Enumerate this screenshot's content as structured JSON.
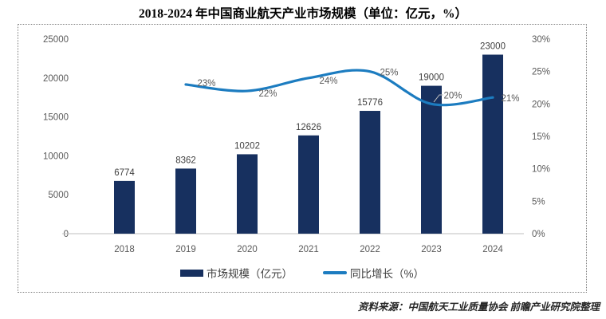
{
  "source": "资料来源：中国航天工业质量协会 前瞻产业研究院整理",
  "chart_data": {
    "type": "bar+line combo",
    "title": "2018-2024 年中国商业航天产业市场规模（单位：亿元，%）",
    "categories": [
      "2018",
      "2019",
      "2020",
      "2021",
      "2022",
      "2023",
      "2024"
    ],
    "series": [
      {
        "name": "市场规模（亿元）",
        "type": "bar",
        "axis": "left",
        "values": [
          6774,
          8362,
          10202,
          12626,
          15776,
          19000,
          23000
        ],
        "value_labels": [
          "6774",
          "8362",
          "10202",
          "12626",
          "15776",
          "19000",
          "23000"
        ]
      },
      {
        "name": "同比增长（%）",
        "type": "line",
        "axis": "right",
        "values": [
          null,
          23,
          22,
          24,
          25,
          20,
          21
        ],
        "point_labels": [
          "",
          "23%",
          "22%",
          "24%",
          "25%",
          "20%",
          "21%"
        ],
        "smoothed": true
      }
    ],
    "left_axis": {
      "min": 0,
      "max": 25000,
      "step": 5000,
      "ticks": [
        "25000",
        "20000",
        "15000",
        "10000",
        "5000",
        "0"
      ]
    },
    "right_axis": {
      "min": 0,
      "max": 30,
      "step": 5,
      "ticks": [
        "30%",
        "25%",
        "20%",
        "15%",
        "10%",
        "5%",
        "0%"
      ]
    },
    "legend": [
      "市场规模（亿元）",
      "同比增长（%）"
    ],
    "legend_position": "bottom",
    "grid": false,
    "colors": {
      "bar": "#17305F",
      "line": "#1C7CC0",
      "axis_text": "#595959",
      "value_text": "#404040",
      "axis_line": "#BFBFBF",
      "leader_line": "#BFBFBF"
    }
  }
}
